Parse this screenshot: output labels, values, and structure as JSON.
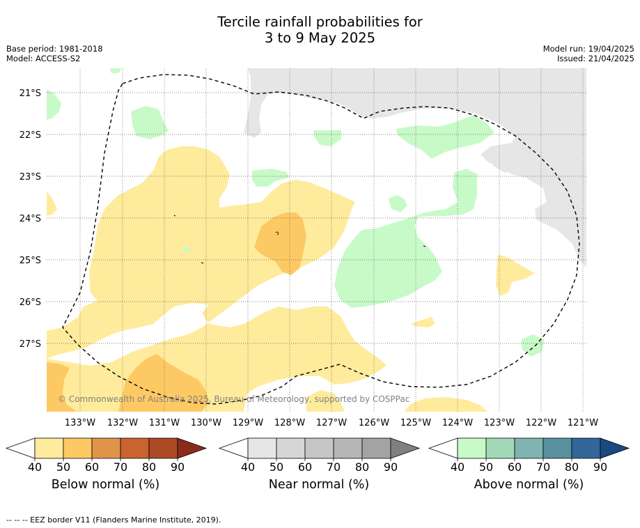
{
  "title": {
    "line1": "Tercile rainfall probabilities for",
    "line2": "3 to 9 May 2025"
  },
  "meta": {
    "base_period": "Base period: 1981-2018",
    "model": "Model: ACCESS-S2",
    "model_run": "Model run: 19/04/2025",
    "issued": "Issued: 21/04/2025"
  },
  "map": {
    "latitude_labels": [
      "21°S",
      "22°S",
      "23°S",
      "24°S",
      "25°S",
      "26°S",
      "27°S"
    ],
    "longitude_labels": [
      "133°W",
      "132°W",
      "131°W",
      "130°W",
      "129°W",
      "128°W",
      "127°W",
      "126°W",
      "125°W",
      "124°W",
      "123°W",
      "122°W",
      "121°W"
    ],
    "copyright": "© Commonwealth of Australia 2025, Bureau of Meteorology, supported by COSPPac",
    "colors": {
      "below_normal_40_50": "#ffeb9c",
      "below_normal_50_60": "#fdc964",
      "near_normal_40_50": "#e6e6e6",
      "above_normal_40_50": "#c8fac8",
      "grid": "#555555",
      "eez_border": "#000000"
    }
  },
  "colorbars": [
    {
      "label": "Below normal (%)",
      "ticks": [
        "40",
        "50",
        "60",
        "70",
        "80",
        "90"
      ],
      "colors": [
        "#ffeb9c",
        "#fdc964",
        "#e0944a",
        "#c9632f",
        "#ad4a26",
        "#8b2b1a"
      ]
    },
    {
      "label": "Near normal (%)",
      "ticks": [
        "40",
        "50",
        "60",
        "70",
        "80",
        "90"
      ],
      "colors": [
        "#e6e6e6",
        "#d6d6d6",
        "#c6c6c6",
        "#b5b5b5",
        "#a3a3a3",
        "#808080"
      ]
    },
    {
      "label": "Above normal (%)",
      "ticks": [
        "40",
        "50",
        "60",
        "70",
        "80",
        "90"
      ],
      "colors": [
        "#c8fac8",
        "#a3d9b8",
        "#80b4b0",
        "#5990a0",
        "#336699",
        "#1a4a80"
      ]
    }
  ],
  "footer": "--  --  -- EEZ border V11 (Flanders Marine Institute, 2019)."
}
